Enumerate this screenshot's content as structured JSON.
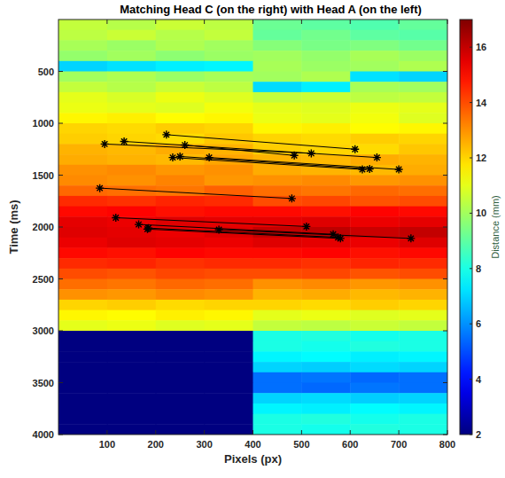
{
  "chart_data": {
    "type": "heatmap",
    "title": "Matching Head C (on the right) with Head A (on the left)",
    "x_label": "Pixels (px)",
    "y_label": "Time (ms)",
    "xlim": [
      0,
      800
    ],
    "ylim": [
      0,
      4000
    ],
    "xticks": [
      100,
      200,
      300,
      400,
      500,
      600,
      700,
      800
    ],
    "yticks": [
      500,
      1000,
      1500,
      2000,
      2500,
      3000,
      3500,
      4000
    ],
    "colorbar": {
      "label": "Distance (mm)",
      "lim": [
        2,
        17
      ],
      "ticks": [
        2,
        4,
        6,
        8,
        10,
        12,
        14,
        16
      ]
    },
    "cells": [
      [
        10.5,
        10.3,
        10.6,
        10.4,
        9.2,
        9.0,
        8.8,
        9.1
      ],
      [
        10.4,
        10.6,
        10.3,
        10.5,
        9.1,
        9.3,
        9.0,
        8.9
      ],
      [
        10.1,
        9.9,
        10.2,
        10.0,
        9.6,
        9.4,
        9.5,
        9.3
      ],
      [
        9.8,
        10.0,
        9.7,
        9.9,
        10.0,
        9.8,
        10.1,
        9.9
      ],
      [
        7.0,
        7.2,
        7.4,
        7.5,
        10.1,
        9.9,
        10.0,
        10.2
      ],
      [
        10.0,
        10.2,
        9.9,
        10.1,
        10.0,
        10.2,
        7.2,
        7.0
      ],
      [
        10.5,
        10.3,
        10.6,
        10.4,
        7.1,
        7.4,
        10.1,
        10.0
      ],
      [
        11.0,
        10.8,
        11.1,
        10.9,
        10.5,
        10.6,
        10.4,
        10.5
      ],
      [
        11.1,
        11.0,
        10.9,
        11.2,
        11.0,
        10.9,
        11.1,
        11.0
      ],
      [
        11.5,
        11.6,
        11.4,
        11.5,
        11.1,
        11.0,
        11.2,
        10.9
      ],
      [
        12.0,
        11.9,
        12.1,
        12.0,
        11.5,
        11.6,
        11.4,
        11.5
      ],
      [
        12.1,
        12.0,
        11.9,
        12.2,
        12.0,
        11.9,
        12.1,
        12.0
      ],
      [
        12.5,
        12.4,
        12.6,
        12.5,
        12.1,
        12.0,
        11.9,
        12.2
      ],
      [
        12.6,
        12.5,
        12.4,
        12.7,
        12.5,
        12.4,
        12.6,
        12.5
      ],
      [
        13.0,
        13.1,
        12.9,
        13.0,
        12.6,
        12.5,
        12.4,
        12.6
      ],
      [
        13.1,
        13.0,
        13.2,
        12.9,
        13.0,
        13.1,
        12.9,
        13.0
      ],
      [
        13.6,
        13.5,
        13.4,
        13.7,
        13.5,
        13.4,
        13.6,
        13.5
      ],
      [
        14.5,
        14.4,
        14.6,
        14.5,
        14.0,
        14.1,
        13.9,
        14.0
      ],
      [
        15.0,
        15.1,
        14.9,
        15.0,
        15.0,
        14.9,
        15.1,
        15.0
      ],
      [
        15.5,
        15.4,
        15.6,
        15.5,
        15.5,
        15.6,
        15.4,
        15.5
      ],
      [
        15.6,
        15.5,
        15.4,
        15.6,
        16.0,
        16.1,
        15.9,
        16.0
      ],
      [
        15.4,
        15.6,
        15.5,
        15.4,
        15.6,
        15.5,
        15.4,
        15.6
      ],
      [
        15.0,
        14.9,
        15.1,
        15.0,
        15.0,
        15.1,
        14.9,
        15.0
      ],
      [
        14.5,
        14.6,
        14.4,
        14.5,
        14.5,
        14.4,
        14.6,
        14.5
      ],
      [
        14.0,
        13.9,
        14.1,
        14.0,
        14.0,
        14.1,
        13.9,
        14.0
      ],
      [
        13.5,
        13.4,
        13.6,
        13.5,
        13.0,
        13.1,
        12.9,
        13.0
      ],
      [
        13.0,
        12.9,
        13.1,
        13.0,
        12.5,
        12.6,
        12.4,
        12.5
      ],
      [
        12.0,
        12.1,
        11.9,
        12.0,
        12.0,
        11.9,
        12.1,
        12.0
      ],
      [
        11.5,
        11.4,
        11.6,
        11.5,
        11.0,
        11.1,
        10.9,
        11.0
      ],
      [
        11.0,
        11.1,
        10.9,
        11.0,
        10.5,
        10.4,
        10.6,
        10.5
      ],
      [
        2,
        2,
        2,
        2,
        8.0,
        8.1,
        7.9,
        8.0
      ],
      [
        2,
        2,
        2,
        2,
        8.0,
        7.9,
        8.1,
        8.0
      ],
      [
        2,
        2,
        2,
        2,
        7.5,
        7.6,
        7.4,
        7.5
      ],
      [
        2,
        2,
        2,
        2,
        7.0,
        6.9,
        7.1,
        7.0
      ],
      [
        2,
        2,
        2,
        2,
        5.5,
        5.6,
        5.4,
        5.5
      ],
      [
        2,
        2,
        2,
        2,
        5.5,
        5.4,
        5.6,
        5.5
      ],
      [
        2,
        2,
        2,
        2,
        7.0,
        7.1,
        6.9,
        7.0
      ],
      [
        2,
        2,
        2,
        2,
        7.5,
        7.4,
        7.6,
        7.5
      ],
      [
        2,
        2,
        2,
        2,
        8.0,
        8.1,
        7.9,
        8.0
      ],
      [
        2,
        2,
        2,
        2,
        8.0,
        7.9,
        8.1,
        8.0
      ]
    ],
    "marker": "asterisk",
    "line_style": "solid",
    "color": "#000000",
    "series": [
      {
        "x": [
          222,
          610
        ],
        "values": [
          1110,
          1250
        ]
      },
      {
        "x": [
          95,
          520
        ],
        "values": [
          1200,
          1290
        ]
      },
      {
        "x": [
          135,
          655
        ],
        "values": [
          1175,
          1330
        ]
      },
      {
        "x": [
          260,
          485
        ],
        "values": [
          1210,
          1310
        ]
      },
      {
        "x": [
          235,
          625
        ],
        "values": [
          1330,
          1445
        ]
      },
      {
        "x": [
          250,
          640
        ],
        "values": [
          1320,
          1440
        ]
      },
      {
        "x": [
          310,
          700
        ],
        "values": [
          1330,
          1445
        ]
      },
      {
        "x": [
          85,
          480
        ],
        "values": [
          1625,
          1725
        ]
      },
      {
        "x": [
          118,
          510
        ],
        "values": [
          1910,
          1995
        ]
      },
      {
        "x": [
          165,
          565
        ],
        "values": [
          1975,
          2070
        ]
      },
      {
        "x": [
          183,
          580
        ],
        "values": [
          2020,
          2110
        ]
      },
      {
        "x": [
          330,
          725
        ],
        "values": [
          2025,
          2110
        ]
      },
      {
        "x": [
          185,
          575
        ],
        "values": [
          2010,
          2100
        ]
      }
    ]
  }
}
